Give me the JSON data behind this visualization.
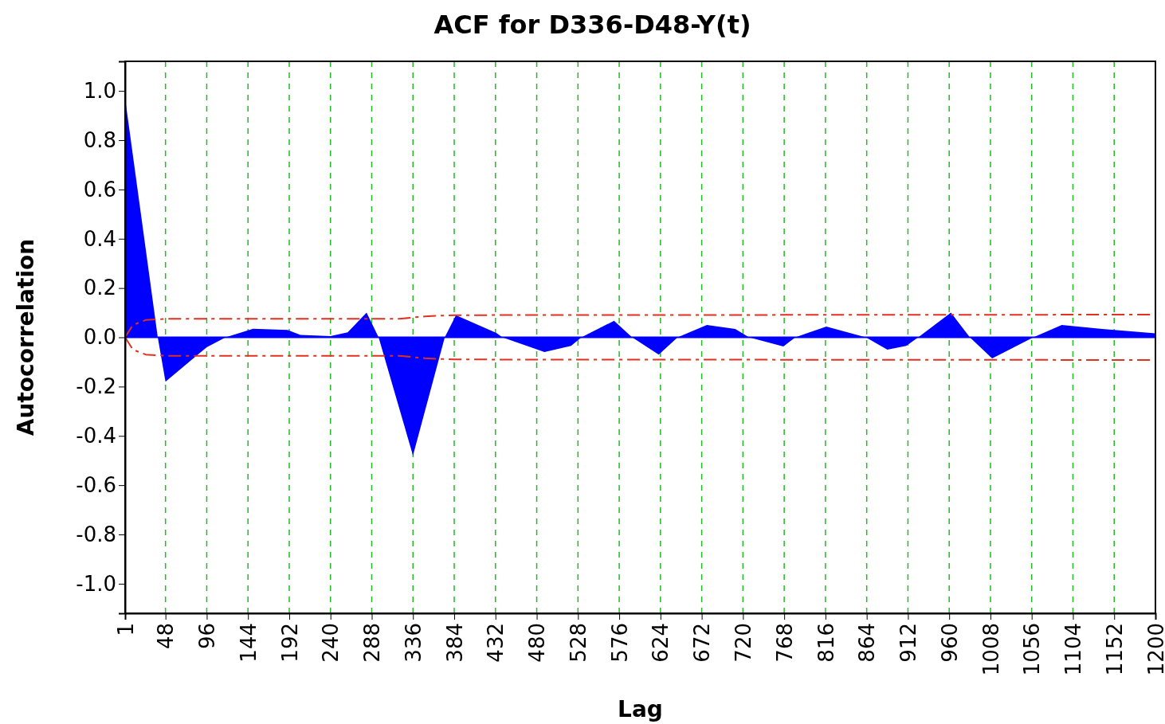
{
  "chart_data": {
    "type": "area",
    "title": "ACF for D336-D48-Y(t)",
    "xlabel": "Lag",
    "ylabel": "Autocorrelation",
    "xlim": [
      1,
      1200
    ],
    "ylim": [
      -1.12,
      1.12
    ],
    "xticks": [
      1,
      48,
      96,
      144,
      192,
      240,
      288,
      336,
      384,
      432,
      480,
      528,
      576,
      624,
      672,
      720,
      768,
      816,
      864,
      912,
      960,
      1008,
      1056,
      1104,
      1152,
      1200
    ],
    "yticks": [
      {
        "value": -1,
        "label": "-1.0"
      },
      {
        "value": -0.8,
        "label": "-0.8"
      },
      {
        "value": -0.6,
        "label": "-0.6"
      },
      {
        "value": -0.4,
        "label": "-0.4"
      },
      {
        "value": -0.2,
        "label": "-0.2"
      },
      {
        "value": 0,
        "label": "0.0"
      },
      {
        "value": 0.2,
        "label": "0.2"
      },
      {
        "value": 0.4,
        "label": "0.4"
      },
      {
        "value": 0.6,
        "label": "0.6"
      },
      {
        "value": 0.8,
        "label": "0.8"
      },
      {
        "value": 1,
        "label": "1.0"
      }
    ],
    "grid": "x",
    "ref_lines": [
      {
        "axis": "y",
        "value": 0,
        "color": "#0000ff"
      }
    ],
    "series": [
      {
        "color": "#0000ff",
        "x": [
          1,
          39,
          48,
          96,
          118,
          150,
          190,
          205,
          240,
          260,
          282,
          296,
          336,
          373,
          386,
          433,
          440,
          489,
          520,
          532,
          570,
          591,
          622,
          644,
          678,
          711,
          727,
          767,
          781,
          817,
          863,
          888,
          910,
          924,
          962,
          984,
          1010,
          1058,
          1091,
          1138,
          1152,
          1200
        ],
        "values": [
          0.97,
          0,
          -0.18,
          -0.04,
          0,
          0.035,
          0.03,
          0.01,
          0.005,
          0.02,
          0.1,
          0,
          -0.48,
          0,
          0.09,
          0.018,
          0,
          -0.06,
          -0.035,
          0,
          0.067,
          0,
          -0.07,
          0,
          0.05,
          0.034,
          0,
          -0.037,
          0,
          0.044,
          0,
          -0.05,
          -0.035,
          0,
          0.1,
          0,
          -0.086,
          0,
          0.05,
          0.034,
          0.03,
          0.016
        ]
      },
      {
        "type": "line",
        "color": "#e03020",
        "line_style": "dashed",
        "x": [
          1,
          10,
          25,
          48,
          320,
          350,
          384,
          1200
        ],
        "values": [
          0,
          0.05,
          0.07,
          0.075,
          0.075,
          0.085,
          0.09,
          0.092
        ]
      },
      {
        "type": "line",
        "color": "#e03020",
        "line_style": "dashed",
        "x": [
          1,
          10,
          25,
          48,
          320,
          350,
          384,
          1200
        ],
        "values": [
          0,
          -0.05,
          -0.07,
          -0.075,
          -0.075,
          -0.085,
          -0.09,
          -0.092
        ]
      }
    ]
  }
}
